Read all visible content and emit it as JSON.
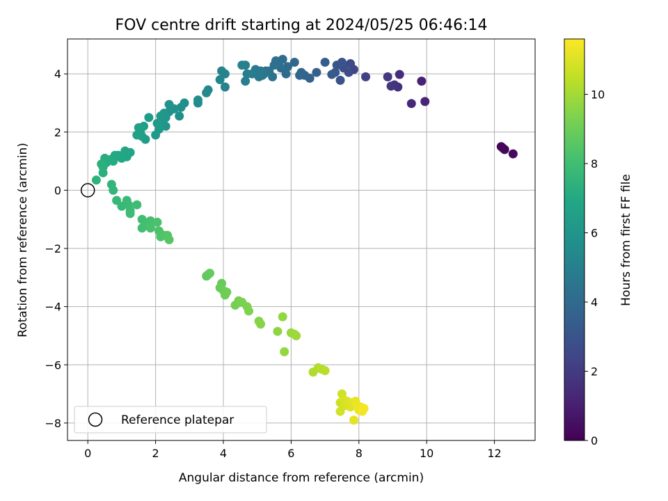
{
  "chart_data": {
    "type": "scatter",
    "title": "FOV centre drift starting at 2024/05/25 06:46:14",
    "xlabel": "Angular distance from reference (arcmin)",
    "ylabel": "Rotation from reference (arcmin)",
    "xlim": [
      -0.6,
      13.2
    ],
    "ylim": [
      -8.6,
      5.2
    ],
    "xticks": [
      0,
      2,
      4,
      6,
      8,
      10,
      12
    ],
    "yticks": [
      -8,
      -6,
      -4,
      -2,
      0,
      2,
      4
    ],
    "grid": true,
    "legend": {
      "position": "lower-left",
      "entries": [
        "Reference platepar"
      ]
    },
    "reference_point": {
      "x": 0,
      "y": 0
    },
    "colorbar": {
      "label": "Hours from first FF file",
      "range": [
        0,
        11.6
      ],
      "ticks": [
        0,
        2,
        4,
        6,
        8,
        10
      ],
      "colormap": "viridis"
    },
    "points": [
      {
        "x": 12.25,
        "y": 1.45,
        "c": 0.1
      },
      {
        "x": 12.2,
        "y": 1.5,
        "c": 0.15
      },
      {
        "x": 12.3,
        "y": 1.4,
        "c": 0.2
      },
      {
        "x": 12.55,
        "y": 1.25,
        "c": 0.3
      },
      {
        "x": 9.95,
        "y": 3.05,
        "c": 1.2
      },
      {
        "x": 9.55,
        "y": 2.98,
        "c": 1.3
      },
      {
        "x": 9.85,
        "y": 3.75,
        "c": 1.1
      },
      {
        "x": 9.2,
        "y": 3.98,
        "c": 1.5
      },
      {
        "x": 9.15,
        "y": 3.55,
        "c": 1.6
      },
      {
        "x": 9.05,
        "y": 3.62,
        "c": 1.7
      },
      {
        "x": 8.95,
        "y": 3.58,
        "c": 1.8
      },
      {
        "x": 8.85,
        "y": 3.9,
        "c": 1.9
      },
      {
        "x": 8.2,
        "y": 3.9,
        "c": 2.2
      },
      {
        "x": 7.85,
        "y": 4.15,
        "c": 2.4
      },
      {
        "x": 7.75,
        "y": 4.35,
        "c": 2.6
      },
      {
        "x": 7.7,
        "y": 4.05,
        "c": 2.7
      },
      {
        "x": 7.55,
        "y": 4.2,
        "c": 2.8
      },
      {
        "x": 7.45,
        "y": 3.78,
        "c": 2.9
      },
      {
        "x": 7.5,
        "y": 4.4,
        "c": 3.0
      },
      {
        "x": 7.35,
        "y": 4.3,
        "c": 3.1
      },
      {
        "x": 7.3,
        "y": 4.05,
        "c": 3.2
      },
      {
        "x": 7.2,
        "y": 3.98,
        "c": 3.3
      },
      {
        "x": 7.0,
        "y": 4.4,
        "c": 3.4
      },
      {
        "x": 6.75,
        "y": 4.05,
        "c": 3.5
      },
      {
        "x": 6.55,
        "y": 3.85,
        "c": 3.6
      },
      {
        "x": 6.4,
        "y": 3.95,
        "c": 3.7
      },
      {
        "x": 6.3,
        "y": 4.05,
        "c": 3.8
      },
      {
        "x": 6.25,
        "y": 3.95,
        "c": 3.85
      },
      {
        "x": 6.1,
        "y": 4.4,
        "c": 3.9
      },
      {
        "x": 5.9,
        "y": 4.25,
        "c": 4.0
      },
      {
        "x": 5.85,
        "y": 4.0,
        "c": 4.05
      },
      {
        "x": 5.75,
        "y": 4.5,
        "c": 4.1
      },
      {
        "x": 5.7,
        "y": 4.2,
        "c": 4.15
      },
      {
        "x": 5.6,
        "y": 4.35,
        "c": 4.2
      },
      {
        "x": 5.55,
        "y": 4.45,
        "c": 4.25
      },
      {
        "x": 5.5,
        "y": 4.3,
        "c": 4.3
      },
      {
        "x": 5.45,
        "y": 3.9,
        "c": 4.35
      },
      {
        "x": 5.35,
        "y": 4.1,
        "c": 4.4
      },
      {
        "x": 5.25,
        "y": 4.1,
        "c": 4.45
      },
      {
        "x": 5.2,
        "y": 4.0,
        "c": 4.5
      },
      {
        "x": 5.15,
        "y": 3.95,
        "c": 4.55
      },
      {
        "x": 5.1,
        "y": 4.1,
        "c": 4.6
      },
      {
        "x": 5.05,
        "y": 3.9,
        "c": 4.65
      },
      {
        "x": 5.0,
        "y": 4.05,
        "c": 4.7
      },
      {
        "x": 4.95,
        "y": 4.15,
        "c": 4.75
      },
      {
        "x": 4.85,
        "y": 4.0,
        "c": 4.8
      },
      {
        "x": 4.7,
        "y": 4.0,
        "c": 4.85
      },
      {
        "x": 4.65,
        "y": 3.75,
        "c": 4.9
      },
      {
        "x": 4.65,
        "y": 4.3,
        "c": 4.95
      },
      {
        "x": 4.55,
        "y": 4.3,
        "c": 5.0
      },
      {
        "x": 4.05,
        "y": 3.55,
        "c": 5.1
      },
      {
        "x": 4.05,
        "y": 4.0,
        "c": 5.15
      },
      {
        "x": 3.95,
        "y": 4.1,
        "c": 5.2
      },
      {
        "x": 3.9,
        "y": 3.8,
        "c": 5.25
      },
      {
        "x": 3.55,
        "y": 3.45,
        "c": 5.35
      },
      {
        "x": 3.5,
        "y": 3.35,
        "c": 5.4
      },
      {
        "x": 3.25,
        "y": 3.0,
        "c": 5.5
      },
      {
        "x": 3.25,
        "y": 3.1,
        "c": 5.55
      },
      {
        "x": 2.85,
        "y": 3.0,
        "c": 5.65
      },
      {
        "x": 2.75,
        "y": 2.85,
        "c": 5.7
      },
      {
        "x": 2.7,
        "y": 2.55,
        "c": 5.75
      },
      {
        "x": 2.55,
        "y": 2.8,
        "c": 5.8
      },
      {
        "x": 2.4,
        "y": 2.95,
        "c": 5.85
      },
      {
        "x": 2.4,
        "y": 2.7,
        "c": 5.9
      },
      {
        "x": 2.3,
        "y": 2.5,
        "c": 5.95
      },
      {
        "x": 2.3,
        "y": 2.2,
        "c": 6.0
      },
      {
        "x": 2.25,
        "y": 2.65,
        "c": 6.05
      },
      {
        "x": 2.2,
        "y": 2.35,
        "c": 6.1
      },
      {
        "x": 2.15,
        "y": 2.55,
        "c": 6.15
      },
      {
        "x": 2.1,
        "y": 2.1,
        "c": 6.2
      },
      {
        "x": 2.05,
        "y": 2.3,
        "c": 6.25
      },
      {
        "x": 2.0,
        "y": 1.9,
        "c": 6.3
      },
      {
        "x": 1.8,
        "y": 2.5,
        "c": 6.35
      },
      {
        "x": 1.7,
        "y": 1.75,
        "c": 6.4
      },
      {
        "x": 1.65,
        "y": 2.2,
        "c": 6.45
      },
      {
        "x": 1.6,
        "y": 1.85,
        "c": 6.5
      },
      {
        "x": 1.55,
        "y": 2.0,
        "c": 6.55
      },
      {
        "x": 1.5,
        "y": 2.15,
        "c": 6.6
      },
      {
        "x": 1.45,
        "y": 1.9,
        "c": 6.65
      },
      {
        "x": 1.25,
        "y": 1.3,
        "c": 6.75
      },
      {
        "x": 1.15,
        "y": 1.15,
        "c": 6.8
      },
      {
        "x": 1.1,
        "y": 1.35,
        "c": 6.85
      },
      {
        "x": 1.0,
        "y": 1.1,
        "c": 6.9
      },
      {
        "x": 0.9,
        "y": 1.2,
        "c": 6.95
      },
      {
        "x": 0.8,
        "y": 1.2,
        "c": 7.0
      },
      {
        "x": 0.75,
        "y": 1.0,
        "c": 7.05
      },
      {
        "x": 0.65,
        "y": 1.05,
        "c": 7.1
      },
      {
        "x": 0.55,
        "y": 0.95,
        "c": 7.15
      },
      {
        "x": 0.5,
        "y": 1.1,
        "c": 7.2
      },
      {
        "x": 0.45,
        "y": 0.8,
        "c": 7.25
      },
      {
        "x": 0.45,
        "y": 0.6,
        "c": 7.3
      },
      {
        "x": 0.4,
        "y": 0.9,
        "c": 7.35
      },
      {
        "x": 0.25,
        "y": 0.35,
        "c": 7.45
      },
      {
        "x": 0.7,
        "y": 0.2,
        "c": 7.55
      },
      {
        "x": 0.75,
        "y": 0.0,
        "c": 7.6
      },
      {
        "x": 0.85,
        "y": -0.35,
        "c": 7.65
      },
      {
        "x": 1.0,
        "y": -0.55,
        "c": 7.7
      },
      {
        "x": 1.15,
        "y": -0.35,
        "c": 7.75
      },
      {
        "x": 1.2,
        "y": -0.5,
        "c": 7.8
      },
      {
        "x": 1.25,
        "y": -0.7,
        "c": 7.85
      },
      {
        "x": 1.25,
        "y": -0.8,
        "c": 7.9
      },
      {
        "x": 1.45,
        "y": -0.5,
        "c": 7.95
      },
      {
        "x": 1.6,
        "y": -1.0,
        "c": 8.0
      },
      {
        "x": 1.6,
        "y": -1.3,
        "c": 8.05
      },
      {
        "x": 1.75,
        "y": -1.2,
        "c": 8.1
      },
      {
        "x": 1.85,
        "y": -1.05,
        "c": 8.15
      },
      {
        "x": 1.85,
        "y": -1.3,
        "c": 8.2
      },
      {
        "x": 2.05,
        "y": -1.1,
        "c": 8.25
      },
      {
        "x": 2.1,
        "y": -1.4,
        "c": 8.3
      },
      {
        "x": 2.15,
        "y": -1.6,
        "c": 8.35
      },
      {
        "x": 2.25,
        "y": -1.55,
        "c": 8.4
      },
      {
        "x": 2.35,
        "y": -1.55,
        "c": 8.45
      },
      {
        "x": 2.4,
        "y": -1.7,
        "c": 8.5
      },
      {
        "x": 3.5,
        "y": -2.95,
        "c": 8.7
      },
      {
        "x": 3.55,
        "y": -2.9,
        "c": 8.75
      },
      {
        "x": 3.6,
        "y": -2.85,
        "c": 8.8
      },
      {
        "x": 3.95,
        "y": -3.2,
        "c": 8.85
      },
      {
        "x": 3.9,
        "y": -3.35,
        "c": 8.9
      },
      {
        "x": 4.0,
        "y": -3.45,
        "c": 8.95
      },
      {
        "x": 4.05,
        "y": -3.6,
        "c": 9.0
      },
      {
        "x": 4.1,
        "y": -3.5,
        "c": 9.05
      },
      {
        "x": 4.35,
        "y": -3.95,
        "c": 9.15
      },
      {
        "x": 4.45,
        "y": -3.8,
        "c": 9.2
      },
      {
        "x": 4.55,
        "y": -3.85,
        "c": 9.25
      },
      {
        "x": 4.7,
        "y": -4.0,
        "c": 9.3
      },
      {
        "x": 4.75,
        "y": -4.15,
        "c": 9.35
      },
      {
        "x": 5.05,
        "y": -4.5,
        "c": 9.45
      },
      {
        "x": 5.1,
        "y": -4.6,
        "c": 9.5
      },
      {
        "x": 5.6,
        "y": -4.85,
        "c": 9.65
      },
      {
        "x": 5.75,
        "y": -4.35,
        "c": 9.7
      },
      {
        "x": 5.8,
        "y": -5.55,
        "c": 9.75
      },
      {
        "x": 6.0,
        "y": -4.9,
        "c": 9.8
      },
      {
        "x": 6.1,
        "y": -4.95,
        "c": 9.85
      },
      {
        "x": 6.15,
        "y": -5.0,
        "c": 9.9
      },
      {
        "x": 6.65,
        "y": -6.25,
        "c": 10.2
      },
      {
        "x": 6.8,
        "y": -6.1,
        "c": 10.25
      },
      {
        "x": 6.9,
        "y": -6.15,
        "c": 10.3
      },
      {
        "x": 7.0,
        "y": -6.2,
        "c": 10.35
      },
      {
        "x": 7.45,
        "y": -7.3,
        "c": 10.7
      },
      {
        "x": 7.5,
        "y": -7.0,
        "c": 10.75
      },
      {
        "x": 7.45,
        "y": -7.6,
        "c": 10.8
      },
      {
        "x": 7.55,
        "y": -7.2,
        "c": 10.85
      },
      {
        "x": 7.6,
        "y": -7.4,
        "c": 10.9
      },
      {
        "x": 7.65,
        "y": -7.25,
        "c": 10.95
      },
      {
        "x": 7.7,
        "y": -7.35,
        "c": 11.0
      },
      {
        "x": 7.75,
        "y": -7.45,
        "c": 11.05
      },
      {
        "x": 7.8,
        "y": -7.3,
        "c": 11.1
      },
      {
        "x": 7.85,
        "y": -7.9,
        "c": 11.15
      },
      {
        "x": 7.9,
        "y": -7.25,
        "c": 11.2
      },
      {
        "x": 7.95,
        "y": -7.4,
        "c": 11.25
      },
      {
        "x": 8.0,
        "y": -7.55,
        "c": 11.3
      },
      {
        "x": 8.05,
        "y": -7.45,
        "c": 11.35
      },
      {
        "x": 8.1,
        "y": -7.6,
        "c": 11.4
      },
      {
        "x": 8.15,
        "y": -7.5,
        "c": 11.45
      }
    ]
  }
}
